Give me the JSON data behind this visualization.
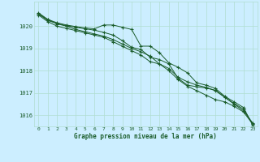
{
  "title": "Graphe pression niveau de la mer (hPa)",
  "background_color": "#cceeff",
  "grid_color": "#b0ddd0",
  "line_color": "#1a5c2a",
  "x_min": 0,
  "x_max": 23,
  "y_min": 1015.5,
  "y_max": 1021.1,
  "y_ticks": [
    1016,
    1017,
    1018,
    1019,
    1020
  ],
  "series": [
    [
      1020.6,
      1020.3,
      1020.1,
      1020.0,
      1019.85,
      1019.75,
      1019.65,
      1019.55,
      1019.4,
      1019.2,
      1019.0,
      1018.85,
      1018.65,
      1018.3,
      1018.1,
      1017.7,
      1017.5,
      1017.35,
      1017.25,
      1017.1,
      1016.8,
      1016.5,
      1016.2,
      1015.65
    ],
    [
      1020.55,
      1020.3,
      1020.15,
      1020.05,
      1019.98,
      1019.92,
      1019.88,
      1020.05,
      1020.05,
      1019.95,
      1019.85,
      1019.1,
      1019.1,
      1018.8,
      1018.35,
      1018.15,
      1017.9,
      1017.45,
      1017.35,
      1017.2,
      1016.85,
      1016.6,
      1016.35,
      1015.55
    ],
    [
      1020.55,
      1020.25,
      1020.12,
      1020.02,
      1019.95,
      1019.88,
      1019.82,
      1019.72,
      1019.6,
      1019.35,
      1019.05,
      1018.95,
      1018.6,
      1018.5,
      1018.3,
      1017.65,
      1017.35,
      1017.28,
      1017.22,
      1017.12,
      1016.82,
      1016.52,
      1016.28,
      1015.6
    ],
    [
      1020.5,
      1020.2,
      1020.0,
      1019.9,
      1019.8,
      1019.7,
      1019.6,
      1019.5,
      1019.3,
      1019.1,
      1018.9,
      1018.7,
      1018.4,
      1018.3,
      1018.0,
      1017.6,
      1017.3,
      1017.1,
      1016.9,
      1016.7,
      1016.6,
      1016.4,
      1016.15,
      1015.6
    ]
  ]
}
